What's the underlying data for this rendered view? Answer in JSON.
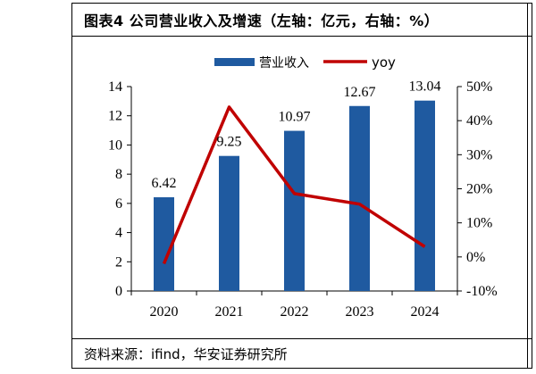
{
  "title": "图表4 公司营业收入及增速（左轴：亿元，右轴：%）",
  "source": "资料来源：ifind，华安证券研究所",
  "chart_data": {
    "type": "bar",
    "categories": [
      "2020",
      "2021",
      "2022",
      "2023",
      "2024"
    ],
    "series": [
      {
        "name": "营业收入",
        "type": "bar",
        "axis": "left",
        "color": "#1f5aa0",
        "values": [
          6.42,
          9.25,
          10.97,
          12.67,
          13.04
        ],
        "labels": [
          "6.42",
          "9.25",
          "10.97",
          "12.67",
          "13.04"
        ]
      },
      {
        "name": "yoy",
        "type": "line",
        "axis": "right",
        "color": "#c00000",
        "values": [
          -2,
          44,
          18.6,
          15.5,
          3
        ]
      }
    ],
    "y_left": {
      "min": 0,
      "max": 14,
      "ticks": [
        "0",
        "2",
        "4",
        "6",
        "8",
        "10",
        "12",
        "14"
      ]
    },
    "y_right": {
      "min": -10,
      "max": 50,
      "ticks": [
        "-10%",
        "0%",
        "10%",
        "20%",
        "30%",
        "40%",
        "50%"
      ]
    },
    "legend_position": "top-center",
    "grid": false
  }
}
